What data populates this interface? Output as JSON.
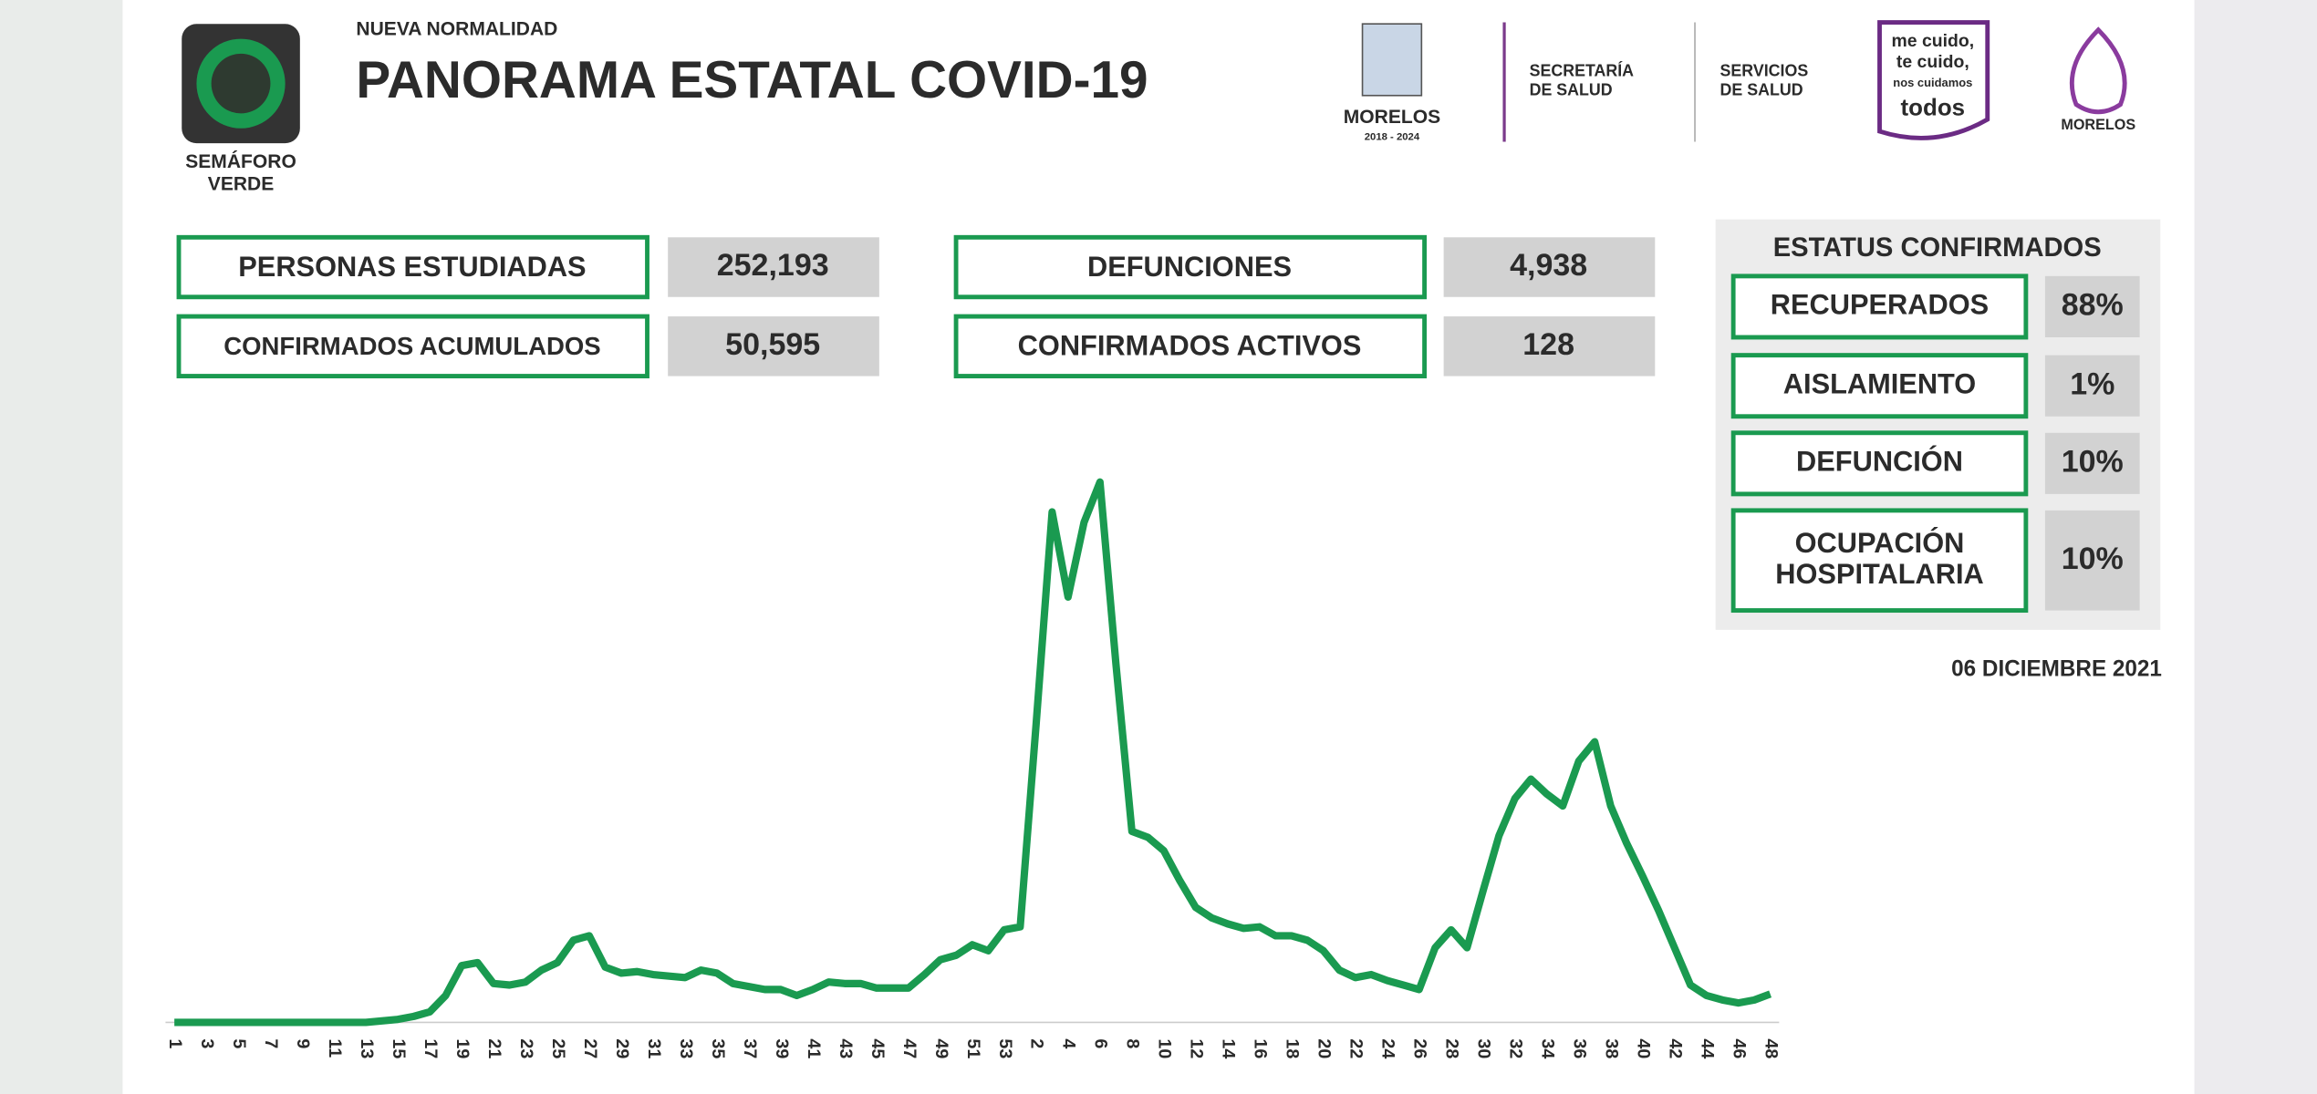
{
  "header": {
    "tag": "NUEVA NORMALIDAD",
    "title": "PANORAMA ESTATAL COVID-19",
    "semaforo": [
      "SEMÁFORO",
      "VERDE"
    ]
  },
  "logos": {
    "morelos": "MORELOS",
    "period": "2018 - 2024",
    "secretaria": [
      "SECRETARÍA",
      "DE SALUD"
    ],
    "servicios": [
      "SERVICIOS",
      "DE SALUD"
    ],
    "slogan": [
      "me cuido,",
      "te cuido,",
      "nos cuidamos",
      "todos"
    ],
    "brand": "MORELOS"
  },
  "stats": [
    {
      "label": "PERSONAS ESTUDIADAS",
      "value": "252,193"
    },
    {
      "label": "CONFIRMADOS ACUMULADOS",
      "value": "50,595"
    },
    {
      "label": "DEFUNCIONES",
      "value": "4,938"
    },
    {
      "label": "CONFIRMADOS ACTIVOS",
      "value": "128"
    }
  ],
  "status": {
    "title": "ESTATUS CONFIRMADOS",
    "items": [
      {
        "label": [
          "RECUPERADOS"
        ],
        "value": "88%"
      },
      {
        "label": [
          "AISLAMIENTO"
        ],
        "value": "1%"
      },
      {
        "label": [
          "DEFUNCIÓN"
        ],
        "value": "10%"
      },
      {
        "label": [
          "OCUPACIÓN",
          "HOSPITALARIA"
        ],
        "value": "10%"
      }
    ]
  },
  "date": "06 DICIEMBRE 2021",
  "chart_data": {
    "type": "line",
    "color": "#1a9a50",
    "ylim": [
      0,
      400
    ],
    "categories": [
      1,
      null,
      3,
      null,
      5,
      null,
      7,
      null,
      9,
      null,
      11,
      null,
      13,
      null,
      15,
      null,
      17,
      null,
      19,
      null,
      21,
      null,
      23,
      null,
      25,
      null,
      27,
      null,
      29,
      null,
      31,
      null,
      33,
      null,
      35,
      null,
      37,
      null,
      39,
      null,
      41,
      null,
      43,
      null,
      45,
      null,
      47,
      null,
      49,
      null,
      51,
      null,
      53,
      null,
      2,
      null,
      4,
      null,
      6,
      null,
      8,
      null,
      10,
      null,
      12,
      null,
      14,
      null,
      16,
      null,
      18,
      null,
      20,
      null,
      22,
      null,
      24,
      null,
      26,
      null,
      28,
      null,
      30,
      null,
      32,
      null,
      34,
      null,
      36,
      null,
      38,
      null,
      40,
      null,
      42,
      null,
      44,
      null,
      46,
      null,
      48
    ],
    "values": [
      0,
      0,
      0,
      0,
      0,
      0,
      0,
      0,
      0,
      0,
      0,
      0,
      0,
      1,
      2,
      4,
      7,
      18,
      38,
      40,
      26,
      25,
      27,
      35,
      40,
      55,
      58,
      37,
      33,
      34,
      32,
      31,
      30,
      35,
      33,
      26,
      24,
      22,
      22,
      18,
      22,
      27,
      26,
      26,
      23,
      23,
      23,
      32,
      42,
      45,
      52,
      48,
      62,
      64,
      200,
      342,
      285,
      335,
      362,
      240,
      128,
      124,
      115,
      95,
      77,
      70,
      66,
      63,
      64,
      58,
      58,
      55,
      48,
      35,
      30,
      32,
      28,
      25,
      22,
      50,
      62,
      50,
      88,
      125,
      150,
      163,
      153,
      145,
      175,
      188,
      145,
      120,
      98,
      75,
      50,
      25,
      18,
      15,
      13,
      15,
      19
    ]
  }
}
